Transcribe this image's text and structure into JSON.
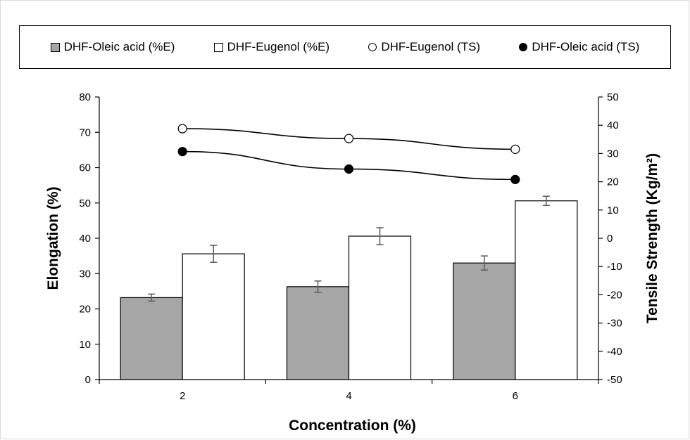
{
  "chart_data": {
    "type": "bar",
    "categories": [
      "2",
      "4",
      "6"
    ],
    "xlabel": "Concentration (%)",
    "ylabel": "Elongation (%)",
    "y2label": "Tensile Strength (Kg/m²)",
    "ylim": [
      0,
      80
    ],
    "y2lim": [
      -50,
      50
    ],
    "yticks": [
      "0",
      "10",
      "20",
      "30",
      "40",
      "50",
      "60",
      "70",
      "80"
    ],
    "y2ticks": [
      "-50",
      "-40",
      "-30",
      "-20",
      "-10",
      "0",
      "10",
      "20",
      "30",
      "40",
      "50"
    ],
    "legend_position": "top",
    "grid": false,
    "series": [
      {
        "name": "DHF-Oleic acid (%E)",
        "type": "bar",
        "axis": "left",
        "color": "#a6a6a6",
        "values": [
          23.2,
          26.3,
          33.0
        ],
        "errors": [
          1.0,
          1.6,
          2.0
        ]
      },
      {
        "name": "DHF-Eugenol (%E)",
        "type": "bar",
        "axis": "left",
        "color": "#ffffff",
        "values": [
          35.6,
          40.6,
          50.6
        ],
        "errors": [
          2.4,
          2.4,
          1.3
        ]
      },
      {
        "name": "DHF-Eugenol (TS)",
        "type": "line",
        "marker": "open-circle",
        "axis": "right",
        "color": "#000000",
        "values": [
          38.8,
          35.3,
          31.5
        ]
      },
      {
        "name": "DHF-Oleic acid (TS)",
        "type": "line",
        "marker": "filled-circle",
        "axis": "right",
        "color": "#000000",
        "values": [
          30.7,
          24.5,
          20.8
        ]
      }
    ]
  }
}
